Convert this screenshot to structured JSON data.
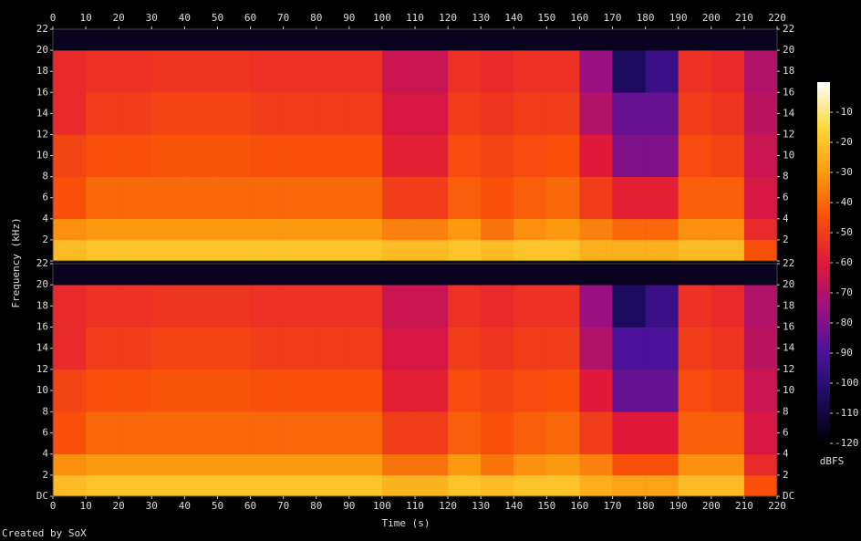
{
  "chart_data": {
    "type": "heatmap",
    "x_label": "Time (s)",
    "y_label": "Frequency (kHz)",
    "colorbar_label": "dBFS",
    "footer": "Created by SoX",
    "xlim": [
      0,
      220
    ],
    "xticks": [
      0,
      10,
      20,
      30,
      40,
      50,
      60,
      70,
      80,
      90,
      100,
      110,
      120,
      130,
      140,
      150,
      160,
      170,
      180,
      190,
      200,
      210,
      220
    ],
    "ylim": [
      0,
      22
    ],
    "yticks": [
      {
        "value": 0,
        "label": "DC"
      },
      2,
      4,
      6,
      8,
      10,
      12,
      14,
      16,
      18,
      20,
      22
    ],
    "zlim": [
      -120,
      0
    ],
    "zticks": [
      -120,
      -110,
      -100,
      -90,
      -80,
      -70,
      -60,
      -50,
      -40,
      -30,
      -20,
      -10
    ],
    "colors": [
      "#000000",
      "#1c0a5e",
      "#4a139a",
      "#9a1080",
      "#e0183a",
      "#f8500a",
      "#fb9a10",
      "#fdd83a",
      "#ffffff"
    ],
    "xbins": [
      0,
      10,
      20,
      30,
      40,
      50,
      60,
      70,
      80,
      90,
      100,
      110,
      120,
      130,
      140,
      150,
      160,
      170,
      180,
      190,
      200,
      210,
      220
    ],
    "ybins": [
      0,
      2,
      4,
      8,
      12,
      16,
      20,
      22
    ],
    "channels": [
      {
        "z": [
          [
            -22,
            -20,
            -20,
            -20,
            -20,
            -20,
            -20,
            -20,
            -20,
            -20,
            -22,
            -22,
            -20,
            -22,
            -20,
            -20,
            -25,
            -25,
            -25,
            -22,
            -22,
            -45
          ],
          [
            -32,
            -30,
            -30,
            -30,
            -30,
            -30,
            -30,
            -30,
            -30,
            -30,
            -35,
            -35,
            -30,
            -38,
            -32,
            -30,
            -35,
            -40,
            -40,
            -32,
            -32,
            -55
          ],
          [
            -45,
            -40,
            -40,
            -40,
            -40,
            -40,
            -40,
            -40,
            -40,
            -40,
            -50,
            -50,
            -42,
            -45,
            -42,
            -40,
            -50,
            -58,
            -58,
            -42,
            -42,
            -62
          ],
          [
            -48,
            -45,
            -45,
            -44,
            -44,
            -44,
            -45,
            -45,
            -45,
            -45,
            -58,
            -58,
            -46,
            -48,
            -46,
            -45,
            -60,
            -80,
            -80,
            -46,
            -48,
            -65
          ],
          [
            -55,
            -50,
            -50,
            -48,
            -48,
            -48,
            -50,
            -50,
            -50,
            -50,
            -62,
            -62,
            -50,
            -52,
            -50,
            -50,
            -70,
            -85,
            -85,
            -50,
            -52,
            -68
          ],
          [
            -55,
            -53,
            -53,
            -52,
            -52,
            -52,
            -53,
            -53,
            -53,
            -53,
            -65,
            -65,
            -53,
            -55,
            -53,
            -53,
            -75,
            -105,
            -95,
            -53,
            -55,
            -70
          ],
          [
            -115,
            -115,
            -115,
            -115,
            -115,
            -115,
            -115,
            -115,
            -115,
            -115,
            -115,
            -115,
            -115,
            -115,
            -115,
            -115,
            -115,
            -115,
            -115,
            -115,
            -115,
            -115
          ]
        ]
      },
      {
        "z": [
          [
            -22,
            -20,
            -20,
            -20,
            -20,
            -20,
            -20,
            -20,
            -20,
            -20,
            -24,
            -24,
            -20,
            -22,
            -20,
            -20,
            -25,
            -28,
            -28,
            -22,
            -22,
            -45
          ],
          [
            -32,
            -30,
            -30,
            -30,
            -30,
            -30,
            -30,
            -30,
            -30,
            -30,
            -38,
            -38,
            -30,
            -38,
            -32,
            -30,
            -35,
            -45,
            -45,
            -32,
            -32,
            -55
          ],
          [
            -45,
            -40,
            -40,
            -40,
            -40,
            -40,
            -40,
            -40,
            -40,
            -40,
            -50,
            -50,
            -42,
            -45,
            -42,
            -40,
            -50,
            -60,
            -60,
            -42,
            -42,
            -62
          ],
          [
            -48,
            -45,
            -45,
            -44,
            -44,
            -44,
            -45,
            -45,
            -45,
            -45,
            -58,
            -58,
            -46,
            -48,
            -46,
            -45,
            -60,
            -85,
            -85,
            -46,
            -48,
            -65
          ],
          [
            -55,
            -50,
            -50,
            -48,
            -48,
            -48,
            -50,
            -50,
            -50,
            -50,
            -62,
            -62,
            -50,
            -52,
            -50,
            -50,
            -70,
            -90,
            -90,
            -50,
            -52,
            -68
          ],
          [
            -55,
            -53,
            -53,
            -52,
            -52,
            -52,
            -53,
            -53,
            -53,
            -53,
            -65,
            -65,
            -53,
            -55,
            -53,
            -53,
            -75,
            -105,
            -95,
            -53,
            -55,
            -70
          ],
          [
            -115,
            -115,
            -115,
            -115,
            -115,
            -115,
            -115,
            -115,
            -115,
            -115,
            -115,
            -115,
            -115,
            -115,
            -115,
            -115,
            -115,
            -115,
            -115,
            -115,
            -115,
            -115
          ]
        ]
      }
    ]
  }
}
